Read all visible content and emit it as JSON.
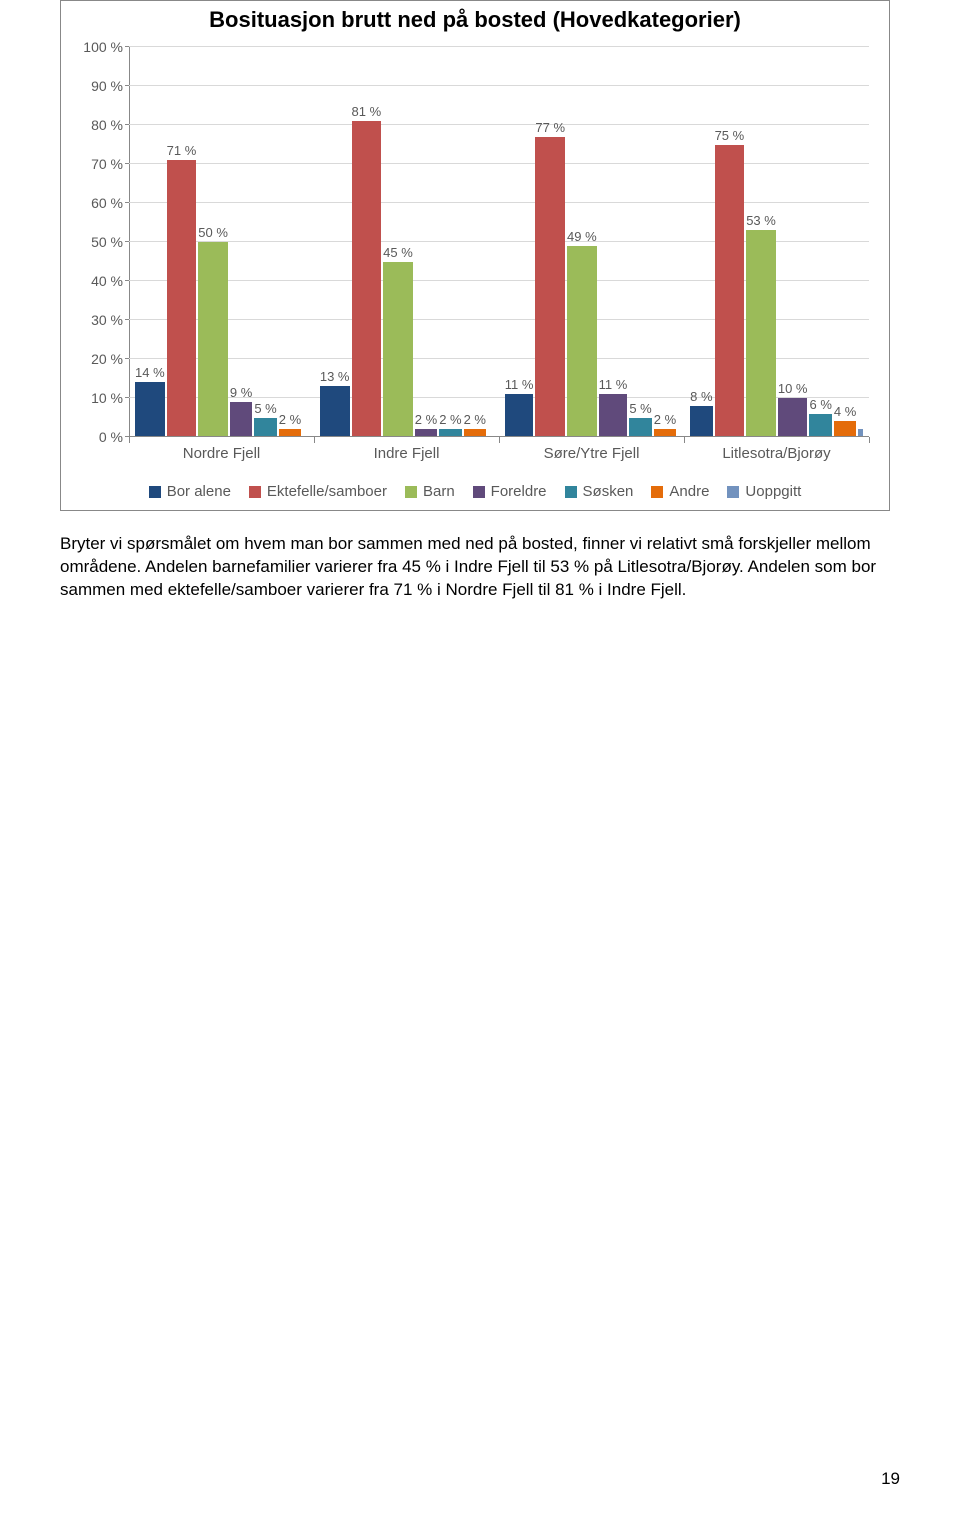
{
  "chart": {
    "type": "bar-grouped",
    "title": "Bosituasjon brutt ned på bosted (Hovedkategorier)",
    "title_fontsize": 22,
    "background_color": "#ffffff",
    "axis_color": "#888888",
    "grid_color": "#d9d9d9",
    "label_color": "#595959",
    "ylim": [
      0,
      100
    ],
    "ytick_step": 10,
    "ytick_suffix": " %",
    "series": [
      {
        "key": "bor_alene",
        "label": "Bor alene",
        "color": "#1f497d"
      },
      {
        "key": "ektefelle",
        "label": "Ektefelle/samboer",
        "color": "#c0504d"
      },
      {
        "key": "barn",
        "label": "Barn",
        "color": "#9bbb59"
      },
      {
        "key": "foreldre",
        "label": "Foreldre",
        "color": "#604a7b"
      },
      {
        "key": "sosken",
        "label": "Søsken",
        "color": "#31859c"
      },
      {
        "key": "andre",
        "label": "Andre",
        "color": "#e46c0a"
      },
      {
        "key": "uoppgitt",
        "label": "Uoppgitt",
        "color": "#7292be"
      }
    ],
    "categories": [
      "Nordre Fjell",
      "Indre Fjell",
      "Søre/Ytre Fjell",
      "Litlesotra/Bjorøy"
    ],
    "data": {
      "Nordre Fjell": {
        "bor_alene": 14,
        "ektefelle": 71,
        "barn": 50,
        "foreldre": 9,
        "sosken": 5,
        "andre": 2,
        "uoppgitt": 0
      },
      "Indre Fjell": {
        "bor_alene": 13,
        "ektefelle": 81,
        "barn": 45,
        "foreldre": 2,
        "sosken": 2,
        "andre": 2,
        "uoppgitt": 0
      },
      "Søre/Ytre Fjell": {
        "bor_alene": 11,
        "ektefelle": 77,
        "barn": 49,
        "foreldre": 11,
        "sosken": 5,
        "andre": 2,
        "uoppgitt": 1
      },
      "Litlesotra/Bjorøy": {
        "bor_alene": 8,
        "ektefelle": 75,
        "barn": 53,
        "foreldre": 10,
        "sosken": 6,
        "andre": 4,
        "uoppgitt": 2
      }
    },
    "labels": {
      "Nordre Fjell": {
        "bor_alene": "14 %",
        "ektefelle": "71 %",
        "barn": "50 %",
        "foreldre": "9 %",
        "sosken": "5 %",
        "andre": "2 %",
        "uoppgitt": null
      },
      "Indre Fjell": {
        "bor_alene": "13 %",
        "ektefelle": "81 %",
        "barn": "45 %",
        "foreldre": "2 %",
        "sosken": "2 %",
        "andre": "2 %",
        "uoppgitt": null
      },
      "Søre/Ytre Fjell": {
        "bor_alene": "11 %",
        "ektefelle": "77 %",
        "barn": "49 %",
        "foreldre": "11 %",
        "sosken": "5 %",
        "andre": "2 %",
        "uoppgitt": null
      },
      "Litlesotra/Bjorøy": {
        "bor_alene": "8 %",
        "ektefelle": "75 %",
        "barn": "53 %",
        "foreldre": "10 %",
        "sosken": "6 %",
        "andre": "4 %",
        "uoppgitt": null
      }
    }
  },
  "body_text": "Bryter vi spørsmålet om hvem man bor sammen med ned på bosted, finner vi relativt små forskjeller mellom områdene. Andelen barnefamilier varierer fra 45 % i Indre Fjell til 53 % på Litlesotra/Bjorøy. Andelen som bor sammen med ektefelle/samboer varierer fra 71 % i Nordre Fjell til 81 % i Indre Fjell.",
  "page_number": "19"
}
